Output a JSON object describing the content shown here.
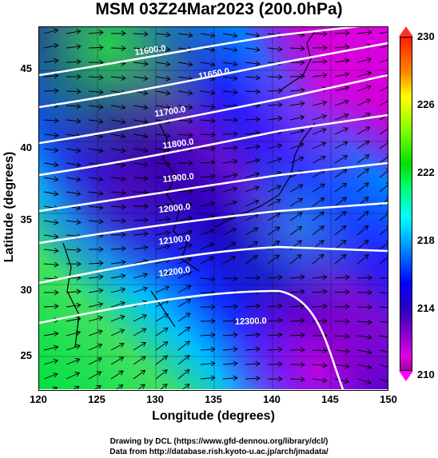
{
  "title": "MSM 03Z24Mar2023 (200.0hPa)",
  "axes": {
    "xlabel": "Longitude (degrees)",
    "ylabel": "Latitude  (degrees)",
    "xticks": [
      "120",
      "125",
      "130",
      "135",
      "140",
      "145",
      "150"
    ],
    "yticks": [
      "45",
      "40",
      "35",
      "30",
      "25"
    ]
  },
  "colorbar": {
    "ticks": [
      "230",
      "226",
      "222",
      "218",
      "214",
      "210"
    ],
    "colors": [
      "#ff2000",
      "#ffff00",
      "#00e000",
      "#00ffff",
      "#0000ff",
      "#e000e0"
    ]
  },
  "contours": {
    "labels": [
      "11600.0",
      "11650.0",
      "11700.0",
      "11800.0",
      "11900.0",
      "12000.0",
      "12100.0",
      "12200.0",
      "12300.0"
    ],
    "color": "#ffffff"
  },
  "credits": {
    "line1": "Drawing by DCL (https://www.gfd-dennou.org/library/dcl/)",
    "line2": "Data from http://database.rish.kyoto-u.ac.jp/arch/jmadata/"
  },
  "icons": {
    "wind_arrows": "arrow-right-icon"
  }
}
